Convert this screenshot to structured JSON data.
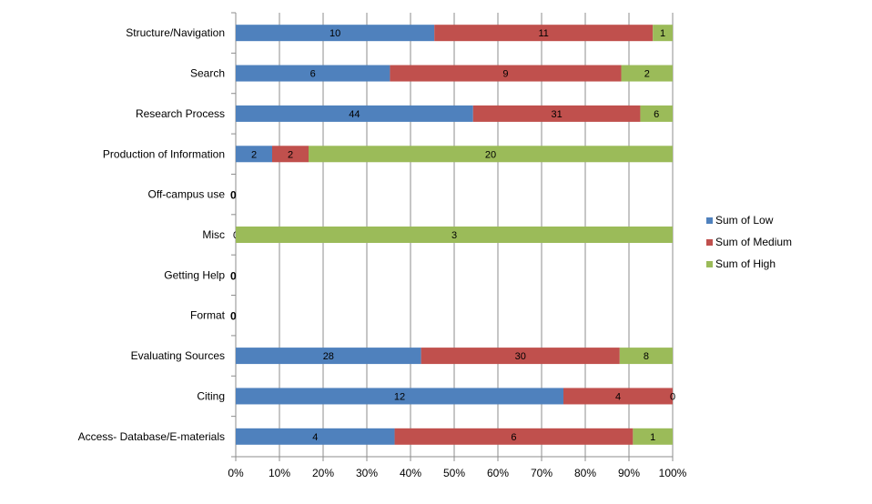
{
  "chart_data": {
    "type": "bar",
    "orientation": "horizontal",
    "stacking": "percent",
    "categories": [
      "Structure/Navigation",
      "Search",
      "Research Process",
      "Production of Information",
      "Off-campus use",
      "Misc",
      "Getting Help",
      "Format",
      "Evaluating Sources",
      "Citing",
      "Access- Database/E-materials"
    ],
    "series": [
      {
        "name": "Sum of Low",
        "color": "#4f81bd",
        "values": [
          10,
          6,
          44,
          2,
          0,
          0,
          0,
          0,
          28,
          12,
          4
        ]
      },
      {
        "name": "Sum of Medium",
        "color": "#c0504d",
        "values": [
          11,
          9,
          31,
          2,
          0,
          null,
          0,
          0,
          30,
          4,
          6
        ]
      },
      {
        "name": "Sum of High",
        "color": "#9bbb59",
        "values": [
          1,
          2,
          6,
          20,
          0,
          3,
          0,
          0,
          8,
          0,
          1
        ]
      }
    ],
    "xlim": [
      0,
      100
    ],
    "x_ticks": [
      "0%",
      "10%",
      "20%",
      "30%",
      "40%",
      "50%",
      "60%",
      "70%",
      "80%",
      "90%",
      "100%"
    ],
    "grid": "vertical",
    "legend": "right",
    "zero_label": "0"
  }
}
